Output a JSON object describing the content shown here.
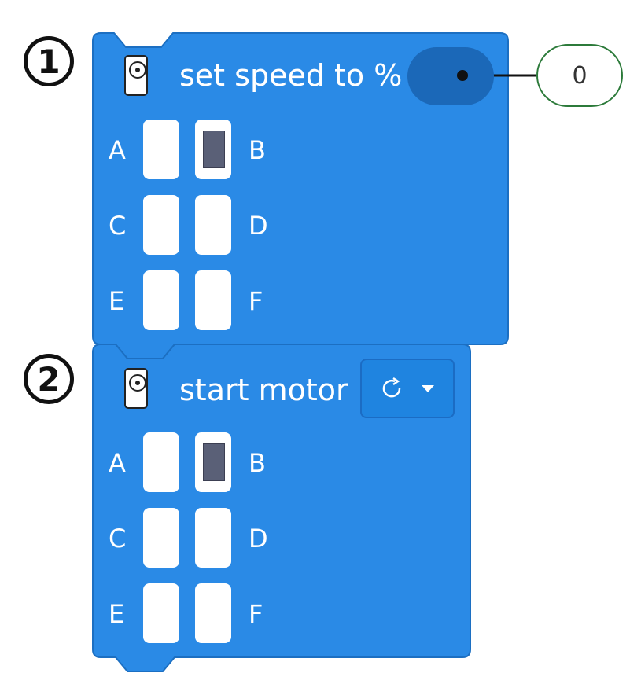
{
  "steps": [
    "1",
    "2"
  ],
  "blocks": [
    {
      "label": "set speed to %",
      "icon": "motor-icon",
      "value": "0",
      "ports": [
        {
          "left": "A",
          "right": "B",
          "left_selected": false,
          "right_selected": true
        },
        {
          "left": "C",
          "right": "D",
          "left_selected": false,
          "right_selected": false
        },
        {
          "left": "E",
          "right": "F",
          "left_selected": false,
          "right_selected": false
        }
      ]
    },
    {
      "label": "start motor",
      "icon": "motor-icon",
      "direction_icon": "rotate-clockwise-icon",
      "dropdown_icon": "caret-down-icon",
      "ports": [
        {
          "left": "A",
          "right": "B",
          "left_selected": false,
          "right_selected": true
        },
        {
          "left": "C",
          "right": "D",
          "left_selected": false,
          "right_selected": false
        },
        {
          "left": "E",
          "right": "F",
          "left_selected": false,
          "right_selected": false
        }
      ]
    }
  ],
  "colors": {
    "block_blue": "#2a8ae6",
    "block_border": "#1c6fc2",
    "oval_blue": "#1b68b8",
    "selected_port": "#5a6077",
    "callout_border": "#2c7a3a"
  }
}
